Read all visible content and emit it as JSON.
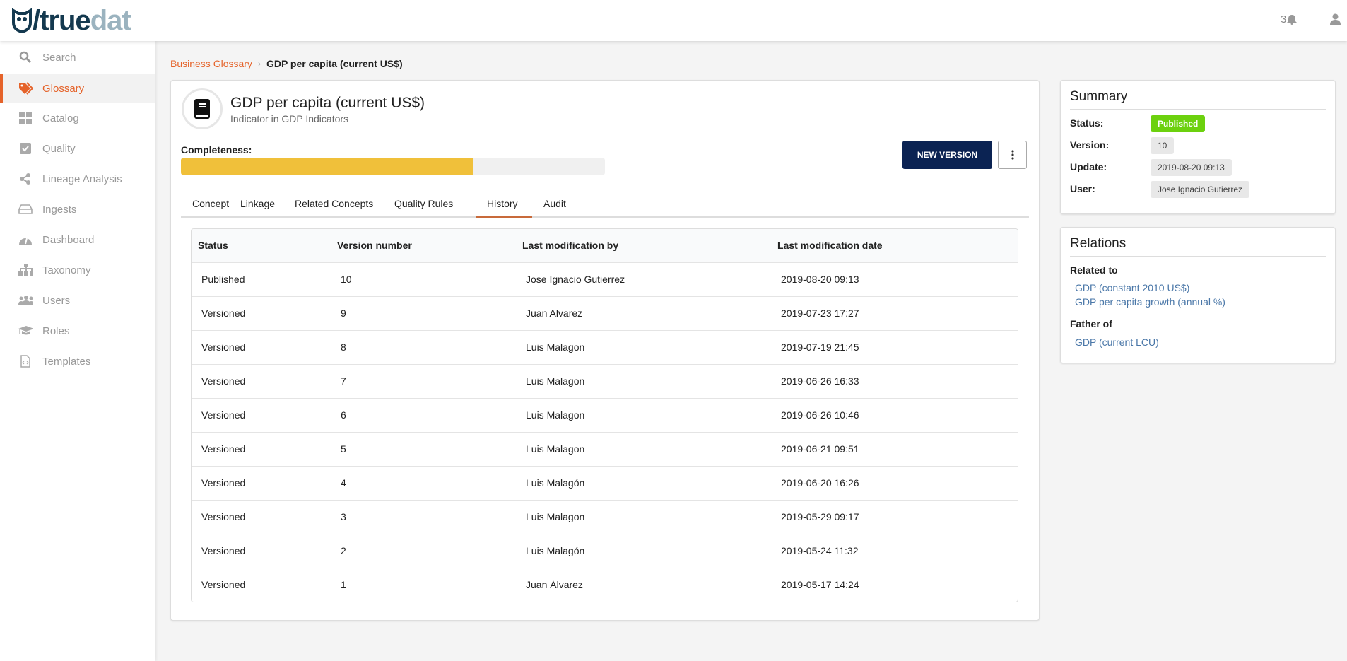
{
  "app": {
    "logo_text_1": "/true",
    "logo_text_2": "dat",
    "notifications_count": "3"
  },
  "sidebar": {
    "items": [
      {
        "label": "Search",
        "icon": "search-icon"
      },
      {
        "label": "Glossary",
        "icon": "tag-icon",
        "active": true
      },
      {
        "label": "Catalog",
        "icon": "grid-icon"
      },
      {
        "label": "Quality",
        "icon": "checkbox-icon"
      },
      {
        "label": "Lineage Analysis",
        "icon": "share-icon"
      },
      {
        "label": "Ingests",
        "icon": "hdd-icon"
      },
      {
        "label": "Dashboard",
        "icon": "gauge-icon"
      },
      {
        "label": "Taxonomy",
        "icon": "sitemap-icon"
      },
      {
        "label": "Users",
        "icon": "users-icon"
      },
      {
        "label": "Roles",
        "icon": "graduation-cap-icon"
      },
      {
        "label": "Templates",
        "icon": "file-code-icon"
      }
    ]
  },
  "breadcrumb": {
    "parent": "Business Glossary",
    "current": "GDP per capita (current US$)"
  },
  "concept": {
    "title": "GDP per capita (current US$)",
    "subtitle": "Indicator in GDP Indicators",
    "completeness_label": "Completeness:",
    "completeness_percent": 69,
    "new_version_label": "NEW VERSION"
  },
  "tabs": [
    {
      "label": "Concept"
    },
    {
      "label": "Linkage"
    },
    {
      "label": "Related Concepts"
    },
    {
      "label": "Quality Rules"
    },
    {
      "label": "History",
      "active": true
    },
    {
      "label": "Audit"
    }
  ],
  "history": {
    "columns": [
      "Status",
      "Version number",
      "Last modification by",
      "Last modification date"
    ],
    "rows": [
      [
        "Published",
        "10",
        "Jose Ignacio Gutierrez",
        "2019-08-20 09:13"
      ],
      [
        "Versioned",
        "9",
        "Juan Alvarez",
        "2019-07-23 17:27"
      ],
      [
        "Versioned",
        "8",
        "Luis Malagon",
        "2019-07-19 21:45"
      ],
      [
        "Versioned",
        "7",
        "Luis Malagon",
        "2019-06-26 16:33"
      ],
      [
        "Versioned",
        "6",
        "Luis Malagon",
        "2019-06-26 10:46"
      ],
      [
        "Versioned",
        "5",
        "Luis Malagon",
        "2019-06-21 09:51"
      ],
      [
        "Versioned",
        "4",
        "Luis Malagón",
        "2019-06-20 16:26"
      ],
      [
        "Versioned",
        "3",
        "Luis Malagon",
        "2019-05-29 09:17"
      ],
      [
        "Versioned",
        "2",
        "Luis Malagón",
        "2019-05-24 11:32"
      ],
      [
        "Versioned",
        "1",
        "Juan Álvarez",
        "2019-05-17 14:24"
      ]
    ]
  },
  "summary": {
    "title": "Summary",
    "status_label": "Status:",
    "status": "Published",
    "status_color": "#6cd10e",
    "version_label": "Version:",
    "version": "10",
    "update_label": "Update:",
    "update": "2019-08-20 09:13",
    "user_label": "User:",
    "user": "Jose Ignacio Gutierrez"
  },
  "relations": {
    "title": "Relations",
    "related_to_label": "Related to",
    "related_to": [
      "GDP (constant 2010 US$)",
      "GDP per capita growth (annual %)"
    ],
    "father_of_label": "Father of",
    "father_of": [
      "GDP (current LCU)"
    ]
  },
  "colors": {
    "accent": "#e5632a",
    "primary_button": "#0b2353",
    "progress": "#f0c03a",
    "link": "#4a77a8"
  }
}
